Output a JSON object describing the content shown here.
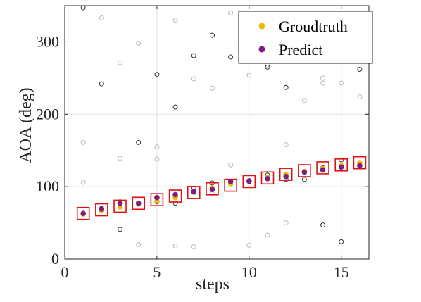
{
  "chart_data": {
    "type": "scatter",
    "title": "",
    "xlabel": "steps",
    "ylabel": "AOA (deg)",
    "xlim": [
      0,
      16.5
    ],
    "ylim": [
      0,
      350
    ],
    "xticks": [
      0,
      5,
      10,
      15
    ],
    "yticks": [
      0,
      100,
      200,
      300
    ],
    "grid": true,
    "legend_position": "top-right",
    "colors": {
      "groundtruth": "#f2b705",
      "predict": "#7e1e80",
      "box": "#e01010",
      "candidate_dark": "#333333",
      "candidate_light": "#b8b8b8"
    },
    "series": [
      {
        "name": "Groudtruth",
        "x": [
          1,
          2,
          3,
          4,
          5,
          6,
          7,
          8,
          9,
          10,
          11,
          12,
          13,
          14,
          15,
          16
        ],
        "y": [
          62,
          67,
          72,
          76,
          80,
          85,
          92,
          98,
          104,
          108,
          113,
          117,
          121,
          125,
          129,
          133
        ]
      },
      {
        "name": "Predict",
        "x": [
          1,
          2,
          3,
          4,
          5,
          6,
          7,
          8,
          9,
          10,
          11,
          12,
          13,
          14,
          15,
          16
        ],
        "y": [
          63,
          69,
          77,
          77,
          85,
          89,
          93,
          96,
          107,
          108,
          111,
          114,
          120,
          123,
          127,
          129
        ]
      }
    ],
    "boxes": {
      "x": [
        1,
        2,
        3,
        4,
        5,
        6,
        7,
        8,
        9,
        10,
        11,
        12,
        13,
        14,
        15,
        16
      ],
      "y": [
        63,
        68,
        73,
        77,
        82,
        87,
        92,
        97,
        102,
        107,
        112,
        117,
        122,
        126,
        130,
        133
      ]
    },
    "candidates_dark": {
      "x": [
        1,
        2,
        2,
        3,
        3,
        4,
        4,
        5,
        5,
        6,
        6,
        7,
        7,
        8,
        8,
        9,
        10,
        11,
        11,
        12,
        12,
        13,
        13,
        14,
        14,
        15,
        15,
        16,
        16
      ],
      "y": [
        347,
        242,
        70,
        79,
        41,
        161,
        77,
        255,
        79,
        210,
        77,
        281,
        98,
        309,
        105,
        279,
        107,
        265,
        116,
        237,
        110,
        274,
        110,
        47,
        126,
        24,
        137,
        262,
        129
      ]
    },
    "candidates_light": {
      "x": [
        1,
        1,
        2,
        3,
        3,
        4,
        4,
        5,
        5,
        6,
        6,
        7,
        7,
        8,
        8,
        9,
        9,
        10,
        10,
        11,
        11,
        12,
        12,
        13,
        14,
        14,
        15,
        15,
        16
      ],
      "y": [
        161,
        106,
        333,
        139,
        271,
        298,
        20,
        155,
        138,
        330,
        18,
        249,
        17,
        236,
        90,
        130,
        340,
        254,
        19,
        33,
        268,
        158,
        50,
        219,
        250,
        243,
        243,
        280,
        224
      ]
    }
  },
  "legend": {
    "groundtruth_label": "Groudtruth",
    "predict_label": "Predict"
  }
}
